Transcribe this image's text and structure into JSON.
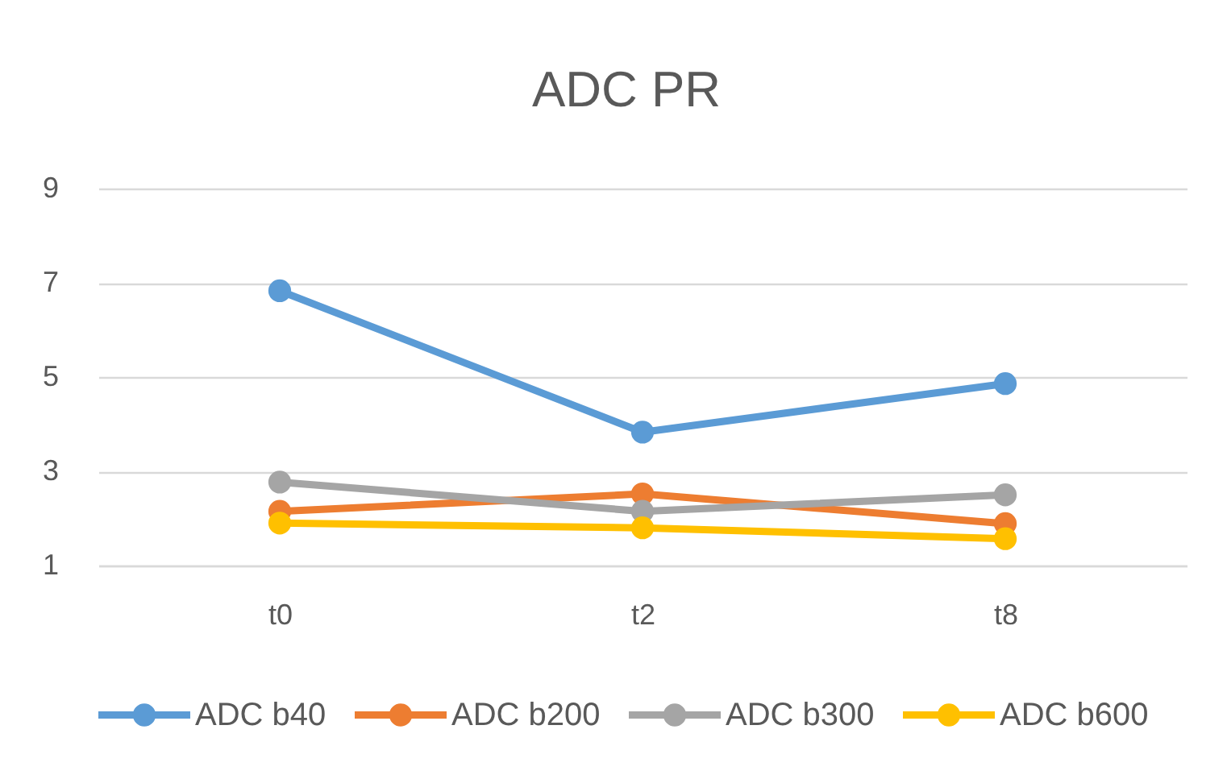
{
  "chart_data": {
    "type": "line",
    "title": "ADC PR",
    "categories": [
      "t0",
      "t2",
      "t8"
    ],
    "series": [
      {
        "name": "ADC b40",
        "color": "#5b9bd5",
        "values": [
          6.83,
          3.83,
          4.86
        ]
      },
      {
        "name": "ADC b200",
        "color": "#ed7d31",
        "values": [
          2.15,
          2.52,
          1.89
        ]
      },
      {
        "name": "ADC b300",
        "color": "#a5a5a5",
        "values": [
          2.77,
          2.15,
          2.5
        ]
      },
      {
        "name": "ADC b600",
        "color": "#ffc000",
        "values": [
          1.9,
          1.8,
          1.57
        ]
      }
    ],
    "ylim": [
      1,
      9
    ],
    "yticks": [
      1,
      3,
      5,
      7,
      9
    ],
    "grid": "y",
    "legend": "bottom",
    "marker": "circle",
    "line_style": "solid"
  }
}
